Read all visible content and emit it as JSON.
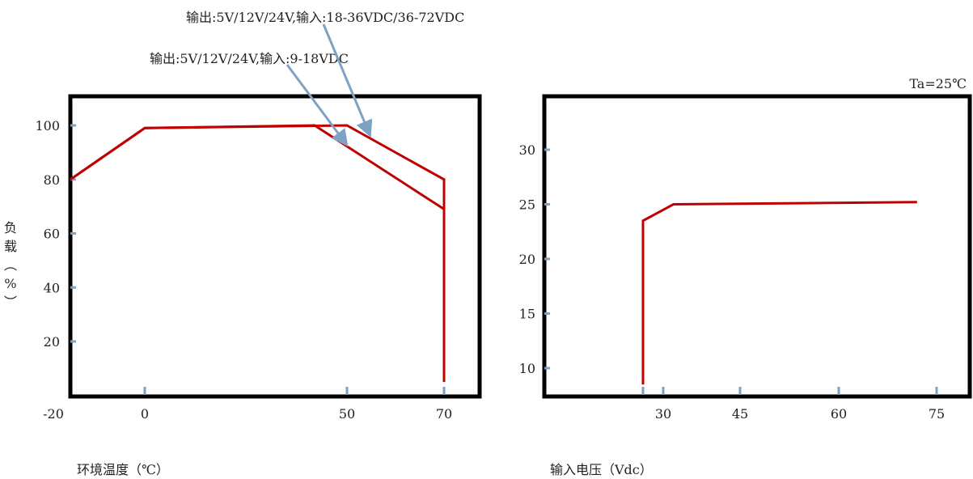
{
  "chart_data": [
    {
      "type": "line",
      "title": "",
      "xlabel": "环境温度（℃）",
      "ylabel": "负载（%）",
      "x_ticks": [
        "-20",
        "0",
        "50",
        "70"
      ],
      "y_ticks": [
        "20",
        "40",
        "60",
        "80",
        "100"
      ],
      "annotations": [
        "输出:5V/12V/24V,输入:18-36VDC/36-72VDC",
        "输出:5V/12V/24V,输入:9-18VDC"
      ],
      "series": [
        {
          "x": [
            -20,
            0,
            50,
            70,
            70
          ],
          "y": [
            80,
            99,
            100,
            80,
            5
          ]
        },
        {
          "x": [
            -20,
            0,
            42,
            70
          ],
          "y": [
            80,
            99,
            100,
            69
          ]
        }
      ]
    },
    {
      "type": "line",
      "title": "",
      "xlabel": "输入电压（Vdc）",
      "ylabel": "",
      "x_ticks": [
        "30",
        "45",
        "60",
        "75"
      ],
      "y_ticks": [
        "10",
        "15",
        "20",
        "25",
        "30"
      ],
      "annotations": [
        "Ta=25℃"
      ],
      "series": [
        {
          "x": [
            27,
            27,
            32,
            72
          ],
          "y": [
            8.5,
            23.5,
            25,
            25.2
          ]
        }
      ]
    }
  ],
  "colors": {
    "curve": "#c00000",
    "arrow": "#7ea2c4",
    "tick": "#7ea2c4",
    "frame": "#000000"
  }
}
